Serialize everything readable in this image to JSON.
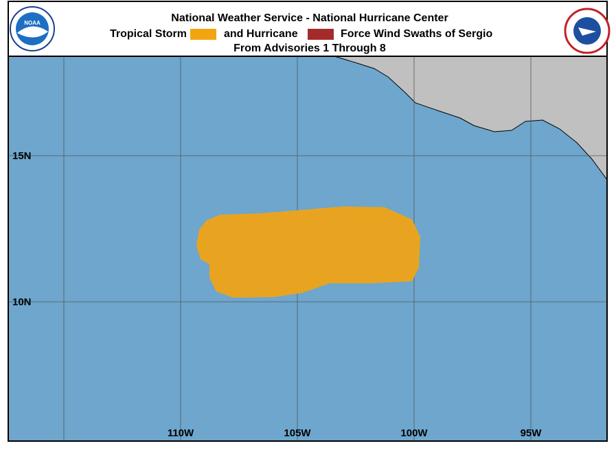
{
  "header": {
    "title": "National Weather Service - National Hurricane Center",
    "legend_prefix": "Tropical Storm",
    "legend_middle": "and Hurricane",
    "legend_suffix": "Force Wind Swaths of Sergio",
    "subtitle": "From Advisories 1 Through 8",
    "left_logo": "NOAA"
  },
  "map": {
    "lat_labels": [
      "15N",
      "10N"
    ],
    "lon_labels": [
      "110W",
      "105W",
      "100W",
      "95W"
    ]
  }
}
